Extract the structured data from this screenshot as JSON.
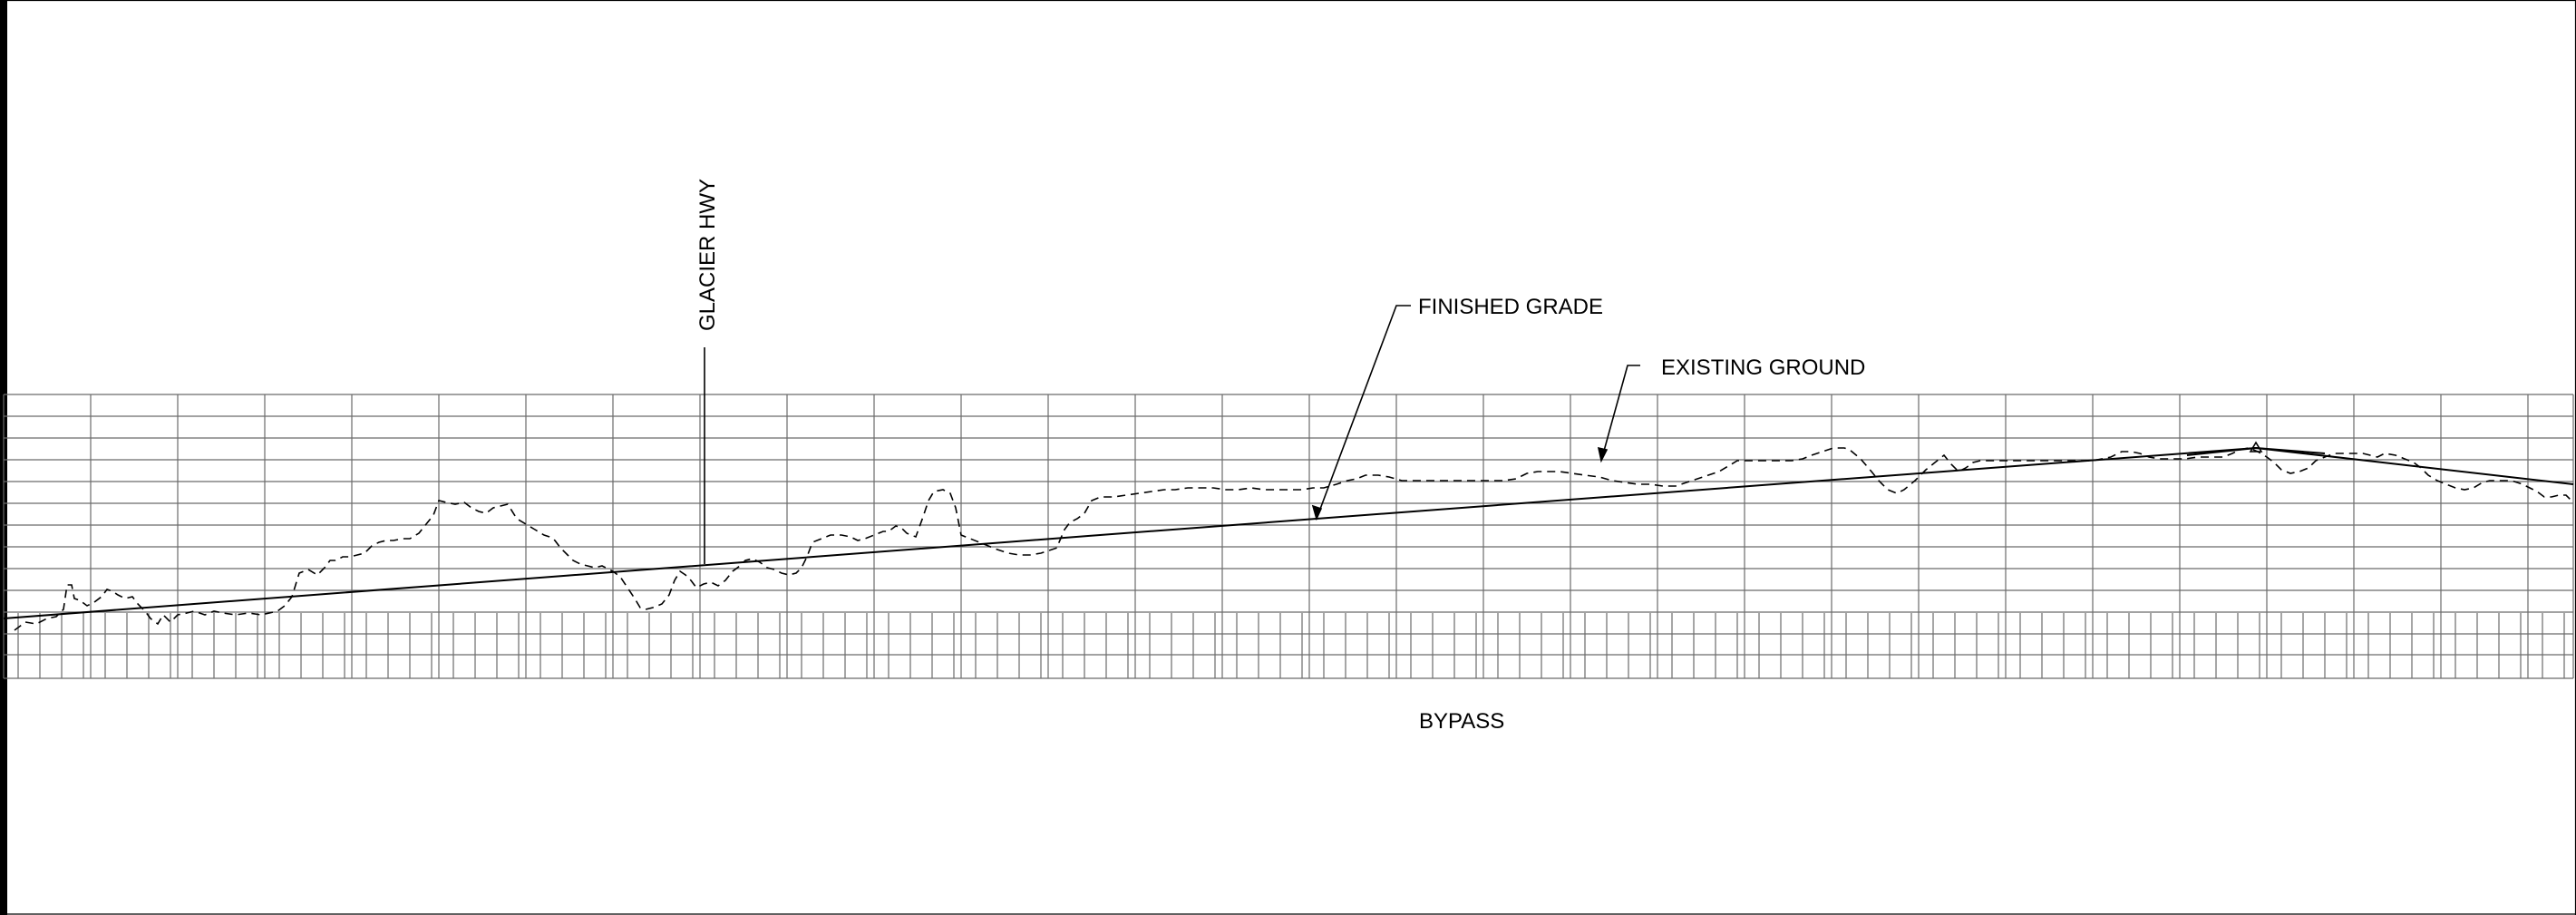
{
  "labels": {
    "glacier_hwy": "GLACIER HWY",
    "finished_grade": "FINISHED GRADE",
    "existing_ground": "EXISTING GROUND",
    "bypass": "BYPASS"
  },
  "colors": {
    "background": "#ffffff",
    "ink": "#000000",
    "grid": "#6b6b6b"
  }
}
